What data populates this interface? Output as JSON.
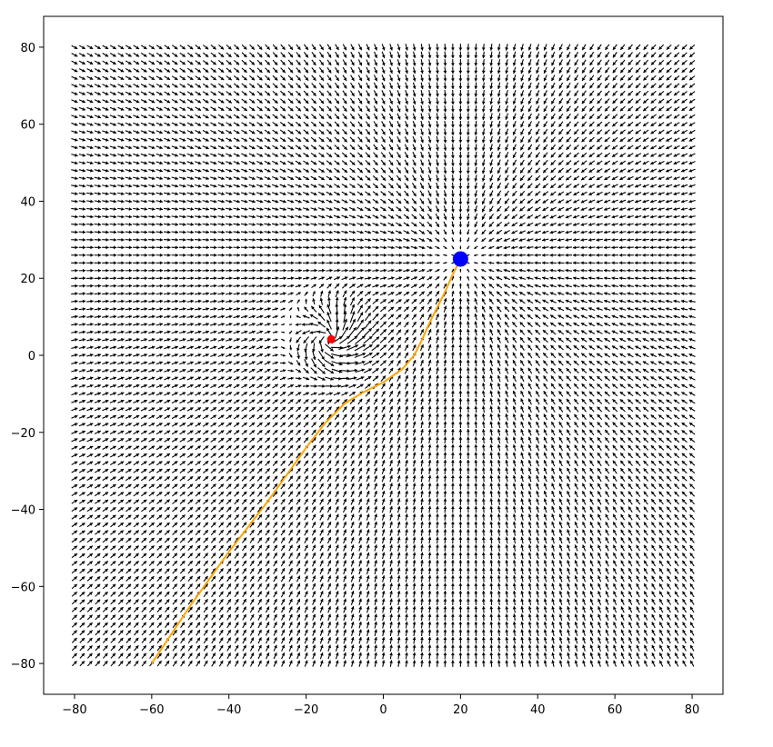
{
  "chart_data": {
    "type": "quiver",
    "title": "",
    "xlabel": "",
    "ylabel": "",
    "xlim": [
      -88,
      88
    ],
    "ylim": [
      -88,
      88
    ],
    "xticks": [
      -80,
      -60,
      -40,
      -20,
      0,
      20,
      40,
      60,
      80
    ],
    "yticks": [
      -80,
      -60,
      -40,
      -20,
      0,
      20,
      40,
      60,
      80
    ],
    "xtick_labels": [
      "−80",
      "−60",
      "−40",
      "−20",
      "0",
      "20",
      "40",
      "60",
      "80"
    ],
    "ytick_labels": [
      "−80",
      "−60",
      "−40",
      "−20",
      "0",
      "20",
      "40",
      "60",
      "80"
    ],
    "grid": false,
    "vector_field": {
      "x_range": [
        -80,
        80
      ],
      "y_range": [
        -80,
        80
      ],
      "step": 2,
      "arrow_color": "#000000",
      "field": "attractive potential toward goal plus repulsive potential around obstacle"
    },
    "goal": {
      "x": 20,
      "y": 25,
      "color": "#0000ff"
    },
    "obstacle": {
      "x": -13.5,
      "y": 4.2,
      "color": "#ff0000"
    },
    "path": {
      "color": "#ffa500",
      "points": [
        [
          -60,
          -80
        ],
        [
          -55,
          -72.5
        ],
        [
          -50,
          -65
        ],
        [
          -45,
          -58
        ],
        [
          -40,
          -51
        ],
        [
          -35,
          -44.5
        ],
        [
          -30,
          -38
        ],
        [
          -25,
          -31
        ],
        [
          -20,
          -24
        ],
        [
          -15,
          -17.5
        ],
        [
          -10,
          -12.5
        ],
        [
          -5,
          -9.5
        ],
        [
          0,
          -7
        ],
        [
          5,
          -3.5
        ],
        [
          8,
          0
        ],
        [
          10,
          4
        ],
        [
          12,
          8.5
        ],
        [
          14,
          12.5
        ],
        [
          16,
          16.5
        ],
        [
          18,
          21
        ],
        [
          20,
          25
        ]
      ]
    }
  }
}
